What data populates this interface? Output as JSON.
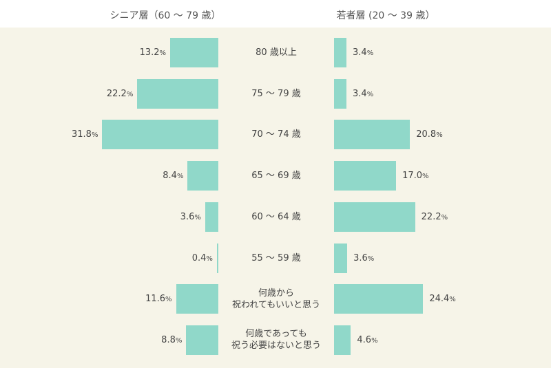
{
  "chart_data": {
    "type": "bar",
    "orientation": "horizontal-butterfly",
    "unit": "%",
    "categories": [
      [
        "80 歳以上"
      ],
      [
        "75 ～ 79 歳"
      ],
      [
        "70 ～ 74 歳"
      ],
      [
        "65 ～ 69 歳"
      ],
      [
        "60 ～ 64 歳"
      ],
      [
        "55 ～ 59 歳"
      ],
      [
        "何歳から",
        "祝われてもいいと思う"
      ],
      [
        "何歳であっても",
        "祝う必要はないと思う"
      ]
    ],
    "series": [
      {
        "name": "シニア層（60 ～ 79 歳）",
        "side": "left",
        "values": [
          13.2,
          22.2,
          31.8,
          8.4,
          3.6,
          0.4,
          11.6,
          8.8
        ],
        "labels": [
          "13.2",
          "22.2",
          "31.8",
          "8.4",
          "3.6",
          "0.4",
          "11.6",
          "8.8"
        ]
      },
      {
        "name": "若者層 (20 ～ 39 歳）",
        "side": "right",
        "values": [
          3.4,
          3.4,
          20.8,
          17.0,
          22.2,
          3.6,
          24.4,
          4.6
        ],
        "labels": [
          "3.4",
          "3.4",
          "20.8",
          "17.0",
          "22.2",
          "3.6",
          "24.4",
          "4.6"
        ]
      }
    ],
    "bar_color": "#90d8c9",
    "background": "#f6f4e8"
  }
}
